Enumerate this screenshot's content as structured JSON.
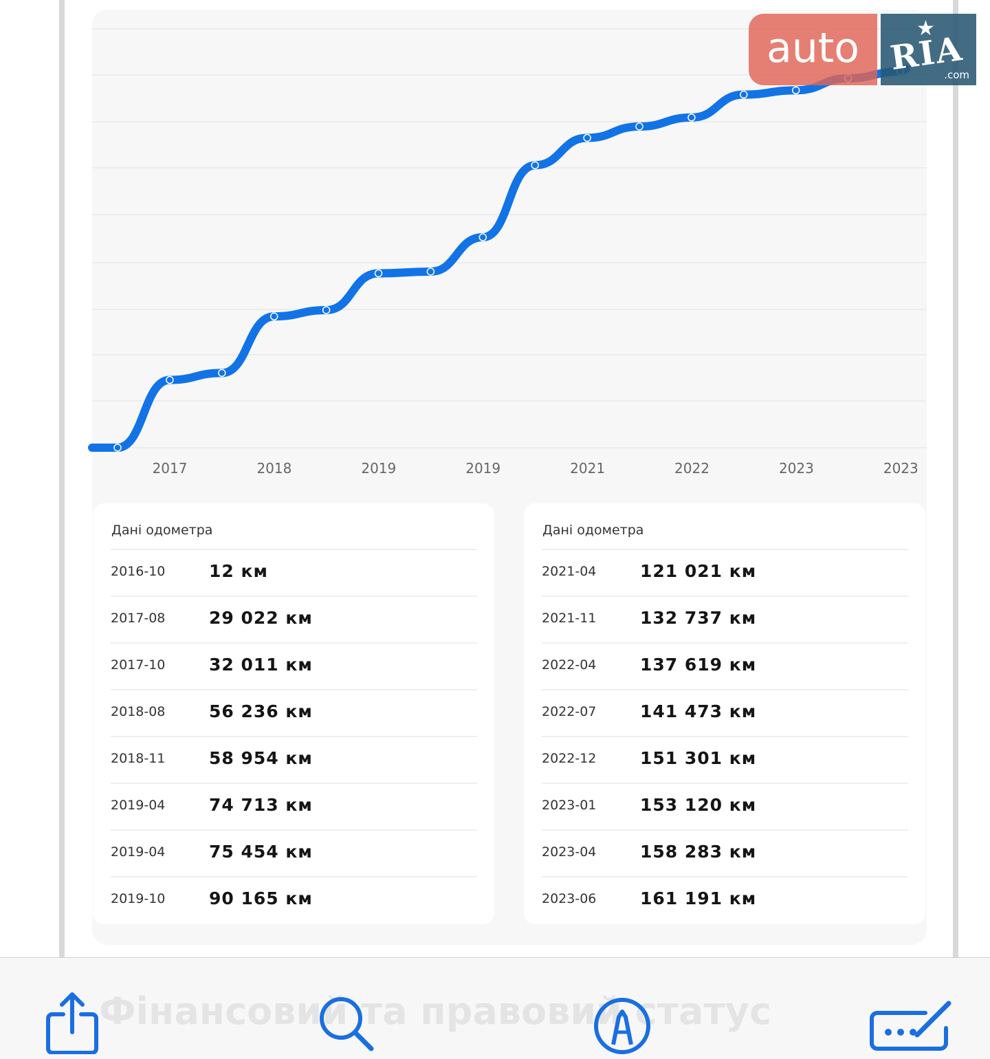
{
  "chart_data": {
    "type": "line",
    "x_tick_labels": [
      "2017",
      "2018",
      "2019",
      "2019",
      "2021",
      "2022",
      "2023",
      "2023"
    ],
    "series": [
      {
        "x": [
          "2016-10",
          "2017-08",
          "2017-10",
          "2018-08",
          "2018-11",
          "2019-04",
          "2019-04",
          "2019-10",
          "2021-04",
          "2021-11",
          "2022-04",
          "2022-07",
          "2022-12",
          "2023-01",
          "2023-04",
          "2023-06"
        ],
        "y": [
          12,
          29022,
          32011,
          56236,
          58954,
          74713,
          75454,
          90165,
          121021,
          132737,
          137619,
          141473,
          151301,
          153120,
          158283,
          161191
        ]
      }
    ],
    "grid": "horizontal",
    "line_color": "#1273e6"
  },
  "cards": [
    {
      "title": "Дані одометра",
      "rows": [
        {
          "date": "2016-10",
          "value": "12 км"
        },
        {
          "date": "2017-08",
          "value": "29 022 км"
        },
        {
          "date": "2017-10",
          "value": "32 011 км"
        },
        {
          "date": "2018-08",
          "value": "56 236 км"
        },
        {
          "date": "2018-11",
          "value": "58 954 км"
        },
        {
          "date": "2019-04",
          "value": "74 713 км"
        },
        {
          "date": "2019-04",
          "value": "75 454 км"
        },
        {
          "date": "2019-10",
          "value": "90 165 км"
        }
      ]
    },
    {
      "title": "Дані одометра",
      "rows": [
        {
          "date": "2021-04",
          "value": "121 021 км"
        },
        {
          "date": "2021-11",
          "value": "132 737 км"
        },
        {
          "date": "2022-04",
          "value": "137 619 км"
        },
        {
          "date": "2022-07",
          "value": "141 473 км"
        },
        {
          "date": "2022-12",
          "value": "151 301 км"
        },
        {
          "date": "2023-01",
          "value": "153 120 км"
        },
        {
          "date": "2023-04",
          "value": "158 283 км"
        },
        {
          "date": "2023-06",
          "value": "161 191 км"
        }
      ]
    }
  ],
  "logo": {
    "left": "auto",
    "right": "RIA",
    "suffix": ".com"
  },
  "ghost_heading": "Фінансовий та правовий статус",
  "toolbar": {
    "icons": [
      "share-icon",
      "search-icon",
      "markup-icon",
      "signature-icon"
    ]
  }
}
